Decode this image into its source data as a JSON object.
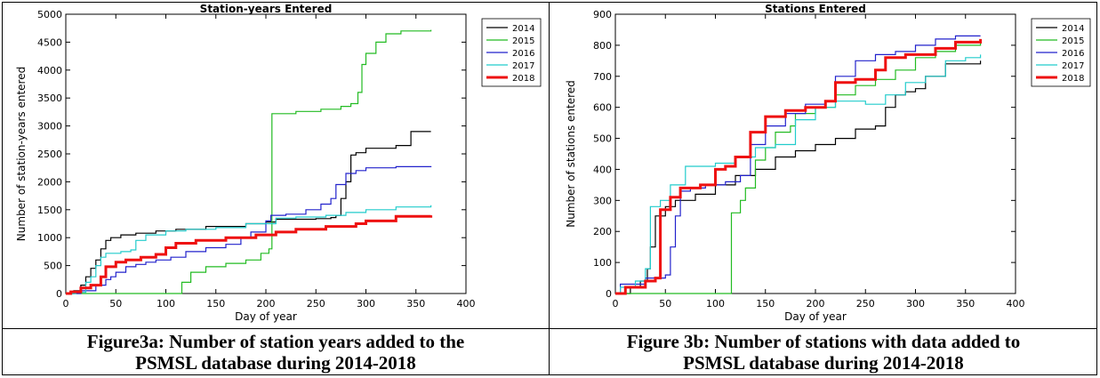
{
  "chart_data": [
    {
      "type": "line",
      "title": "Station-years Entered",
      "xlabel": "Day of year",
      "ylabel": "Number of station-years entered",
      "xlim": [
        0,
        400
      ],
      "ylim": [
        0,
        5000
      ],
      "xticks": [
        0,
        50,
        100,
        150,
        200,
        250,
        300,
        350,
        400
      ],
      "yticks": [
        0,
        500,
        1000,
        1500,
        2000,
        2500,
        3000,
        3500,
        4000,
        4500,
        5000
      ],
      "grid": false,
      "legend_position": "top-right",
      "series": [
        {
          "name": "2014",
          "color": "#000000",
          "width": 1.2,
          "points": [
            [
              0,
              0
            ],
            [
              8,
              50
            ],
            [
              15,
              150
            ],
            [
              20,
              300
            ],
            [
              25,
              450
            ],
            [
              30,
              600
            ],
            [
              35,
              800
            ],
            [
              40,
              950
            ],
            [
              45,
              1000
            ],
            [
              55,
              1050
            ],
            [
              70,
              1080
            ],
            [
              90,
              1120
            ],
            [
              110,
              1150
            ],
            [
              140,
              1200
            ],
            [
              180,
              1250
            ],
            [
              200,
              1280
            ],
            [
              210,
              1330
            ],
            [
              250,
              1340
            ],
            [
              265,
              1360
            ],
            [
              270,
              1400
            ],
            [
              275,
              1700
            ],
            [
              280,
              2000
            ],
            [
              285,
              2480
            ],
            [
              290,
              2520
            ],
            [
              300,
              2600
            ],
            [
              330,
              2650
            ],
            [
              345,
              2900
            ],
            [
              365,
              2900
            ]
          ]
        },
        {
          "name": "2015",
          "color": "#22bb22",
          "width": 1.2,
          "points": [
            [
              0,
              0
            ],
            [
              114,
              0
            ],
            [
              116,
              200
            ],
            [
              125,
              380
            ],
            [
              140,
              480
            ],
            [
              160,
              540
            ],
            [
              180,
              600
            ],
            [
              195,
              720
            ],
            [
              203,
              800
            ],
            [
              206,
              3220
            ],
            [
              230,
              3260
            ],
            [
              255,
              3300
            ],
            [
              275,
              3350
            ],
            [
              285,
              3400
            ],
            [
              292,
              3600
            ],
            [
              296,
              4100
            ],
            [
              300,
              4300
            ],
            [
              310,
              4500
            ],
            [
              320,
              4650
            ],
            [
              335,
              4700
            ],
            [
              365,
              4720
            ]
          ]
        },
        {
          "name": "2016",
          "color": "#2222cc",
          "width": 1.2,
          "points": [
            [
              0,
              0
            ],
            [
              15,
              50
            ],
            [
              30,
              150
            ],
            [
              40,
              250
            ],
            [
              45,
              300
            ],
            [
              50,
              380
            ],
            [
              60,
              480
            ],
            [
              70,
              520
            ],
            [
              80,
              560
            ],
            [
              90,
              600
            ],
            [
              105,
              650
            ],
            [
              120,
              750
            ],
            [
              140,
              820
            ],
            [
              160,
              880
            ],
            [
              175,
              1000
            ],
            [
              185,
              1100
            ],
            [
              200,
              1300
            ],
            [
              205,
              1400
            ],
            [
              220,
              1420
            ],
            [
              240,
              1500
            ],
            [
              255,
              1600
            ],
            [
              265,
              1700
            ],
            [
              270,
              1950
            ],
            [
              280,
              2150
            ],
            [
              290,
              2200
            ],
            [
              300,
              2250
            ],
            [
              330,
              2270
            ],
            [
              365,
              2280
            ]
          ]
        },
        {
          "name": "2017",
          "color": "#22cccc",
          "width": 1.2,
          "points": [
            [
              0,
              0
            ],
            [
              10,
              20
            ],
            [
              20,
              200
            ],
            [
              25,
              300
            ],
            [
              30,
              500
            ],
            [
              35,
              650
            ],
            [
              40,
              720
            ],
            [
              55,
              750
            ],
            [
              65,
              780
            ],
            [
              70,
              950
            ],
            [
              80,
              1050
            ],
            [
              100,
              1120
            ],
            [
              120,
              1150
            ],
            [
              150,
              1180
            ],
            [
              180,
              1250
            ],
            [
              210,
              1350
            ],
            [
              230,
              1370
            ],
            [
              260,
              1400
            ],
            [
              280,
              1450
            ],
            [
              300,
              1500
            ],
            [
              330,
              1550
            ],
            [
              365,
              1580
            ]
          ]
        },
        {
          "name": "2018",
          "color": "#ee1111",
          "width": 3,
          "points": [
            [
              0,
              0
            ],
            [
              5,
              30
            ],
            [
              15,
              100
            ],
            [
              25,
              150
            ],
            [
              35,
              300
            ],
            [
              40,
              480
            ],
            [
              50,
              560
            ],
            [
              60,
              600
            ],
            [
              75,
              650
            ],
            [
              90,
              700
            ],
            [
              100,
              820
            ],
            [
              110,
              900
            ],
            [
              130,
              950
            ],
            [
              160,
              1000
            ],
            [
              190,
              1050
            ],
            [
              210,
              1100
            ],
            [
              230,
              1150
            ],
            [
              260,
              1200
            ],
            [
              290,
              1250
            ],
            [
              300,
              1300
            ],
            [
              330,
              1380
            ],
            [
              365,
              1400
            ]
          ]
        }
      ]
    },
    {
      "type": "line",
      "title": "Stations Entered",
      "xlabel": "Day of year",
      "ylabel": "Number of stations entered",
      "xlim": [
        0,
        400
      ],
      "ylim": [
        0,
        900
      ],
      "xticks": [
        0,
        50,
        100,
        150,
        200,
        250,
        300,
        350,
        400
      ],
      "yticks": [
        0,
        100,
        200,
        300,
        400,
        500,
        600,
        700,
        800,
        900
      ],
      "grid": false,
      "legend_position": "top-right",
      "series": [
        {
          "name": "2014",
          "color": "#000000",
          "width": 1.2,
          "points": [
            [
              0,
              0
            ],
            [
              15,
              20
            ],
            [
              25,
              40
            ],
            [
              32,
              80
            ],
            [
              35,
              150
            ],
            [
              40,
              250
            ],
            [
              50,
              280
            ],
            [
              60,
              300
            ],
            [
              80,
              320
            ],
            [
              100,
              350
            ],
            [
              120,
              380
            ],
            [
              140,
              400
            ],
            [
              160,
              440
            ],
            [
              180,
              460
            ],
            [
              200,
              480
            ],
            [
              220,
              500
            ],
            [
              240,
              530
            ],
            [
              260,
              540
            ],
            [
              270,
              600
            ],
            [
              280,
              640
            ],
            [
              290,
              650
            ],
            [
              300,
              660
            ],
            [
              310,
              700
            ],
            [
              330,
              740
            ],
            [
              365,
              750
            ]
          ]
        },
        {
          "name": "2015",
          "color": "#22bb22",
          "width": 1.2,
          "points": [
            [
              0,
              0
            ],
            [
              114,
              0
            ],
            [
              116,
              260
            ],
            [
              125,
              300
            ],
            [
              130,
              340
            ],
            [
              140,
              430
            ],
            [
              150,
              470
            ],
            [
              160,
              520
            ],
            [
              175,
              540
            ],
            [
              180,
              580
            ],
            [
              200,
              600
            ],
            [
              220,
              640
            ],
            [
              240,
              670
            ],
            [
              260,
              690
            ],
            [
              280,
              720
            ],
            [
              300,
              760
            ],
            [
              320,
              780
            ],
            [
              340,
              800
            ],
            [
              365,
              810
            ]
          ]
        },
        {
          "name": "2016",
          "color": "#2222cc",
          "width": 1.2,
          "points": [
            [
              0,
              0
            ],
            [
              5,
              30
            ],
            [
              30,
              50
            ],
            [
              50,
              60
            ],
            [
              55,
              150
            ],
            [
              60,
              250
            ],
            [
              65,
              330
            ],
            [
              75,
              340
            ],
            [
              90,
              350
            ],
            [
              110,
              360
            ],
            [
              125,
              380
            ],
            [
              135,
              480
            ],
            [
              150,
              540
            ],
            [
              170,
              580
            ],
            [
              190,
              610
            ],
            [
              210,
              620
            ],
            [
              220,
              700
            ],
            [
              240,
              750
            ],
            [
              260,
              770
            ],
            [
              280,
              780
            ],
            [
              300,
              800
            ],
            [
              320,
              820
            ],
            [
              340,
              830
            ],
            [
              365,
              830
            ]
          ]
        },
        {
          "name": "2017",
          "color": "#22cccc",
          "width": 1.2,
          "points": [
            [
              0,
              0
            ],
            [
              5,
              20
            ],
            [
              20,
              40
            ],
            [
              30,
              80
            ],
            [
              35,
              280
            ],
            [
              45,
              300
            ],
            [
              55,
              350
            ],
            [
              70,
              410
            ],
            [
              100,
              420
            ],
            [
              120,
              440
            ],
            [
              140,
              470
            ],
            [
              160,
              480
            ],
            [
              180,
              560
            ],
            [
              200,
              600
            ],
            [
              220,
              620
            ],
            [
              250,
              610
            ],
            [
              270,
              640
            ],
            [
              290,
              680
            ],
            [
              310,
              700
            ],
            [
              330,
              750
            ],
            [
              350,
              760
            ],
            [
              365,
              770
            ]
          ]
        },
        {
          "name": "2018",
          "color": "#ee1111",
          "width": 3,
          "points": [
            [
              0,
              0
            ],
            [
              10,
              20
            ],
            [
              30,
              40
            ],
            [
              40,
              50
            ],
            [
              45,
              270
            ],
            [
              55,
              310
            ],
            [
              65,
              340
            ],
            [
              85,
              350
            ],
            [
              100,
              400
            ],
            [
              110,
              410
            ],
            [
              120,
              440
            ],
            [
              135,
              520
            ],
            [
              150,
              570
            ],
            [
              170,
              590
            ],
            [
              190,
              600
            ],
            [
              210,
              620
            ],
            [
              220,
              680
            ],
            [
              240,
              690
            ],
            [
              260,
              720
            ],
            [
              270,
              760
            ],
            [
              290,
              770
            ],
            [
              320,
              790
            ],
            [
              340,
              810
            ],
            [
              365,
              820
            ]
          ]
        }
      ]
    }
  ],
  "captions": {
    "left": {
      "line1": "Figure3a: Number of station years added to the",
      "line2": "PSMSL database during 2014-2018"
    },
    "right": {
      "line1": "Figure 3b: Number of stations with data added to",
      "line2": "PSMSL database during 2014-2018"
    }
  }
}
